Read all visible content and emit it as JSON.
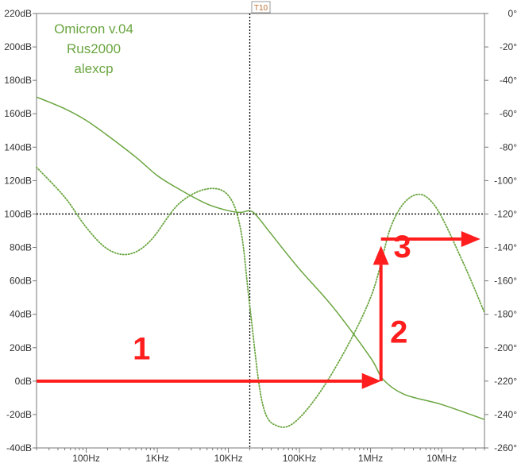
{
  "chart_data": {
    "type": "line",
    "title": "",
    "annotation_lines": [
      "Omicron v.04",
      "Rus2000",
      "alexcp"
    ],
    "cursor_label": "T10",
    "x_scale": "log",
    "xlim": [
      20,
      40000000
    ],
    "x_ticks": [
      {
        "value": 100,
        "label": "100Hz"
      },
      {
        "value": 1000,
        "label": "1KHz"
      },
      {
        "value": 10000,
        "label": "10KHz"
      },
      {
        "value": 100000,
        "label": "100KHz"
      },
      {
        "value": 1000000,
        "label": "1MHz"
      },
      {
        "value": 10000000,
        "label": "10MHz"
      }
    ],
    "y_left": {
      "ylim": [
        -40,
        220
      ],
      "ticks": [
        {
          "value": 220,
          "label": "220dB"
        },
        {
          "value": 200,
          "label": "200dB"
        },
        {
          "value": 180,
          "label": "180dB"
        },
        {
          "value": 160,
          "label": "160dB"
        },
        {
          "value": 140,
          "label": "140dB"
        },
        {
          "value": 120,
          "label": "120dB"
        },
        {
          "value": 100,
          "label": "100dB"
        },
        {
          "value": 80,
          "label": "80dB"
        },
        {
          "value": 60,
          "label": "60dB"
        },
        {
          "value": 40,
          "label": "40dB"
        },
        {
          "value": 20,
          "label": "20dB"
        },
        {
          "value": 0,
          "label": "0dB"
        },
        {
          "value": -20,
          "label": "-20dB"
        },
        {
          "value": -40,
          "label": "-40dB"
        }
      ]
    },
    "y_right": {
      "ylim": [
        -260,
        0
      ],
      "ticks": [
        {
          "value": 0,
          "label": "0°"
        },
        {
          "value": -20,
          "label": "-20°"
        },
        {
          "value": -40,
          "label": "-40°"
        },
        {
          "value": -60,
          "label": "-60°"
        },
        {
          "value": -80,
          "label": "-80°"
        },
        {
          "value": -100,
          "label": "-100°"
        },
        {
          "value": -120,
          "label": "-120°"
        },
        {
          "value": -140,
          "label": "-140°"
        },
        {
          "value": -160,
          "label": "-160°"
        },
        {
          "value": -180,
          "label": "-180°"
        },
        {
          "value": -200,
          "label": "-200°"
        },
        {
          "value": -220,
          "label": "-220°"
        },
        {
          "value": -240,
          "label": "-240°"
        },
        {
          "value": -260,
          "label": "-260°"
        }
      ]
    },
    "series": [
      {
        "axis": "left",
        "style": "solid",
        "points": [
          [
            20,
            170
          ],
          [
            50,
            163
          ],
          [
            100,
            156
          ],
          [
            200,
            147
          ],
          [
            500,
            134
          ],
          [
            1000,
            123
          ],
          [
            2000,
            115
          ],
          [
            5000,
            106
          ],
          [
            10000,
            102
          ],
          [
            15000,
            101
          ],
          [
            20000,
            102
          ],
          [
            25000,
            99
          ],
          [
            40000,
            88
          ],
          [
            100000,
            67
          ],
          [
            300000,
            44
          ],
          [
            1000000,
            14
          ],
          [
            1500000,
            1
          ],
          [
            3000000,
            -8
          ],
          [
            10000000,
            -14
          ],
          [
            40000000,
            -23
          ]
        ]
      },
      {
        "axis": "right",
        "style": "dotted",
        "points": [
          [
            20,
            -92
          ],
          [
            50,
            -110
          ],
          [
            100,
            -128
          ],
          [
            200,
            -141
          ],
          [
            400,
            -144
          ],
          [
            800,
            -136
          ],
          [
            2000,
            -114
          ],
          [
            5000,
            -105
          ],
          [
            10000,
            -109
          ],
          [
            15000,
            -130
          ],
          [
            20000,
            -175
          ],
          [
            30000,
            -233
          ],
          [
            50000,
            -247
          ],
          [
            100000,
            -242
          ],
          [
            300000,
            -214
          ],
          [
            1000000,
            -170
          ],
          [
            2000000,
            -126
          ],
          [
            4000000,
            -109
          ],
          [
            8000000,
            -115
          ],
          [
            20000000,
            -149
          ],
          [
            40000000,
            -179
          ]
        ]
      }
    ],
    "cursor": {
      "x": 20000,
      "y_left": 100
    },
    "step_annotations": [
      {
        "label": "1",
        "from": [
          20,
          0
        ],
        "to": [
          1400000,
          0
        ],
        "label_at": [
          600,
          13
        ]
      },
      {
        "label": "2",
        "from": [
          1400000,
          0
        ],
        "to": [
          1400000,
          81
        ],
        "label_at": [
          2500000,
          23
        ]
      },
      {
        "label": "3",
        "from": [
          1400000,
          85
        ],
        "to": [
          35000000,
          85
        ],
        "label_at": [
          2800000,
          74
        ]
      }
    ],
    "colors": {
      "series": "#6aa53f",
      "annotation_text": "#6aa53f",
      "cursor_label": "#c07030",
      "arrows": "#ff1d1d",
      "grid": "#000000"
    }
  }
}
